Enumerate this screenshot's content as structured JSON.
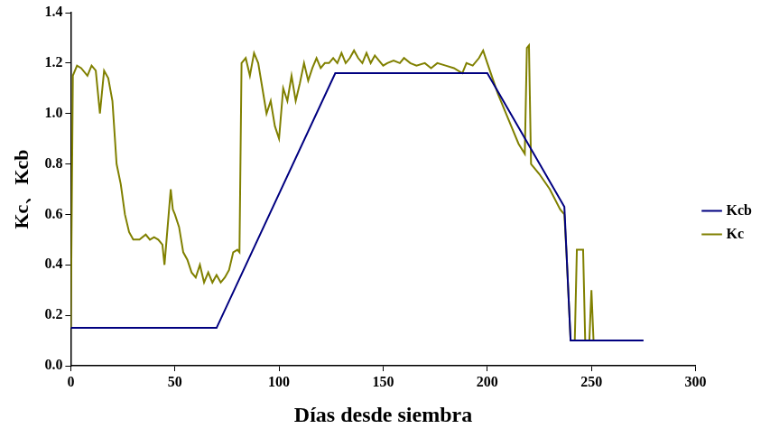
{
  "chart_data": {
    "type": "line",
    "x_label": "Días desde siembra",
    "y_label": "Kc、Kcb",
    "xlim": [
      0,
      300
    ],
    "xticks": [
      0,
      50,
      100,
      150,
      200,
      250,
      300
    ],
    "ylim": [
      0,
      1.4
    ],
    "yticks": [
      {
        "value": 0,
        "label": "0.0"
      },
      0.2,
      0.4,
      0.6,
      0.8,
      {
        "value": 1,
        "label": "1.0"
      },
      1.2,
      1.4
    ],
    "grid": false,
    "legend": "right",
    "series": [
      {
        "name": "Kcb",
        "color": "#000080",
        "x": [
          0,
          70,
          127,
          200,
          237,
          240,
          275
        ],
        "values": [
          0.15,
          0.15,
          1.16,
          1.16,
          0.63,
          0.1,
          0.1
        ]
      },
      {
        "name": "Kc",
        "color": "#808000",
        "x": [
          0,
          1,
          3,
          5,
          8,
          10,
          12,
          14,
          16,
          18,
          20,
          22,
          24,
          26,
          28,
          30,
          33,
          36,
          38,
          40,
          42,
          44,
          45,
          46,
          48,
          49,
          50,
          52,
          54,
          56,
          58,
          60,
          62,
          64,
          66,
          68,
          70,
          72,
          74,
          76,
          78,
          80,
          81,
          82,
          84,
          86,
          88,
          90,
          92,
          94,
          96,
          98,
          100,
          102,
          104,
          106,
          108,
          110,
          112,
          114,
          116,
          118,
          120,
          122,
          124,
          126,
          128,
          130,
          132,
          134,
          136,
          138,
          140,
          142,
          144,
          146,
          148,
          150,
          152,
          155,
          158,
          160,
          163,
          166,
          170,
          173,
          176,
          180,
          184,
          188,
          190,
          193,
          196,
          198,
          200,
          205,
          210,
          215,
          218,
          219,
          220,
          221,
          225,
          230,
          235,
          237,
          238,
          240,
          242,
          243,
          246,
          247,
          249,
          250,
          251,
          260
        ],
        "values": [
          0.15,
          1.15,
          1.19,
          1.18,
          1.15,
          1.19,
          1.17,
          1.0,
          1.17,
          1.14,
          1.05,
          0.8,
          0.72,
          0.6,
          0.53,
          0.5,
          0.5,
          0.52,
          0.5,
          0.51,
          0.5,
          0.48,
          0.4,
          0.5,
          0.7,
          0.62,
          0.6,
          0.55,
          0.45,
          0.42,
          0.37,
          0.35,
          0.4,
          0.33,
          0.37,
          0.33,
          0.36,
          0.33,
          0.35,
          0.38,
          0.45,
          0.46,
          0.45,
          1.2,
          1.22,
          1.15,
          1.24,
          1.2,
          1.1,
          1.0,
          1.05,
          0.95,
          0.9,
          1.1,
          1.05,
          1.15,
          1.05,
          1.12,
          1.2,
          1.13,
          1.18,
          1.22,
          1.18,
          1.2,
          1.2,
          1.22,
          1.2,
          1.24,
          1.2,
          1.22,
          1.25,
          1.22,
          1.2,
          1.24,
          1.2,
          1.23,
          1.21,
          1.19,
          1.2,
          1.21,
          1.2,
          1.22,
          1.2,
          1.19,
          1.2,
          1.18,
          1.2,
          1.19,
          1.18,
          1.16,
          1.2,
          1.19,
          1.22,
          1.25,
          1.2,
          1.08,
          0.98,
          0.88,
          0.84,
          1.26,
          1.27,
          0.8,
          0.76,
          0.7,
          0.62,
          0.6,
          0.45,
          0.1,
          0.1,
          0.46,
          0.46,
          0.1,
          0.1,
          0.3,
          0.1,
          0.1
        ]
      }
    ]
  }
}
